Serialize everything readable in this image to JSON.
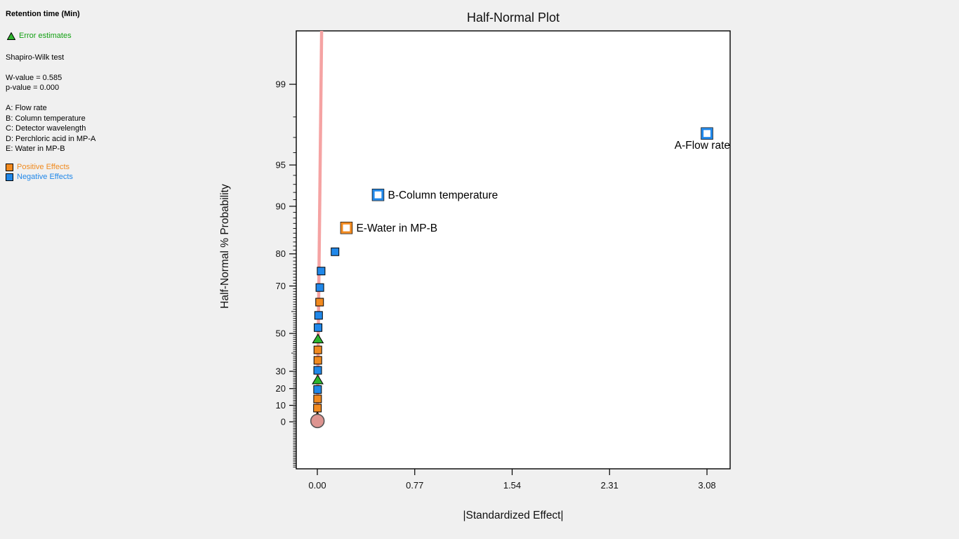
{
  "colors": {
    "page_bg": "#f0f0f0",
    "plot_bg": "#ffffff",
    "positive": "#f28a1f",
    "negative": "#2188e9",
    "error": "#2eb42e",
    "center_fill": "#dd9490",
    "center_stroke": "#555555",
    "fit_line": "#f5a3a3",
    "axis": "#000000"
  },
  "sidebar": {
    "response_label": "Retention time (Min)",
    "error_estimates_label": "Error estimates",
    "shapiro_title": "Shapiro-Wilk test",
    "w_value": "W-value = 0.585",
    "p_value": "p-value = 0.000",
    "factors": [
      "A: Flow rate",
      "B: Column temperature",
      "C: Detector wavelength",
      "D: Perchloric acid in MP-A",
      "E: Water in MP-B"
    ],
    "positive_label": "Positive Effects",
    "negative_label": "Negative Effects"
  },
  "chart_data": {
    "type": "scatter",
    "title": "Half-Normal Plot",
    "xlabel": "|Standardized Effect|",
    "ylabel": "Half-Normal % Probability",
    "x_axis": {
      "min": -0.17,
      "max": 3.26,
      "ticks": [
        {
          "label": "0.00",
          "value": 0
        },
        {
          "label": "0.77",
          "value": 0.77
        },
        {
          "label": "1.54",
          "value": 1.54
        },
        {
          "label": "2.31",
          "value": 2.31
        },
        {
          "label": "3.08",
          "value": 3.08
        }
      ]
    },
    "y_axis": {
      "scale": "half-normal-probability",
      "ticks": [
        {
          "label": "0",
          "value": 0
        },
        {
          "label": "10",
          "value": 10
        },
        {
          "label": "20",
          "value": 20
        },
        {
          "label": "30",
          "value": 30
        },
        {
          "label": "50",
          "value": 50
        },
        {
          "label": "70",
          "value": 70
        },
        {
          "label": "80",
          "value": 80
        },
        {
          "label": "90",
          "value": 90
        },
        {
          "label": "95",
          "value": 95
        },
        {
          "label": "99",
          "value": 99
        }
      ]
    },
    "fit_line": {
      "x1": 0.0,
      "p1": 0.0,
      "x2": 0.034,
      "p2": 99.72
    },
    "points": [
      {
        "x": 3.08,
        "p": 97.22,
        "effect": "negative",
        "open": true,
        "label": "A-Flow rate",
        "label_pos": "below-left"
      },
      {
        "x": 0.48,
        "p": 91.67,
        "effect": "negative",
        "open": true,
        "label": "B-Column temperature",
        "label_pos": "right"
      },
      {
        "x": 0.23,
        "p": 86.11,
        "effect": "positive",
        "open": true,
        "label": "E-Water in MP-B",
        "label_pos": "right"
      },
      {
        "x": 0.14,
        "p": 80.56,
        "effect": "negative"
      },
      {
        "x": 0.03,
        "p": 75.0,
        "effect": "negative"
      },
      {
        "x": 0.02,
        "p": 69.44,
        "effect": "negative"
      },
      {
        "x": 0.018,
        "p": 63.89,
        "effect": "positive"
      },
      {
        "x": 0.01,
        "p": 58.33,
        "effect": "negative"
      },
      {
        "x": 0.006,
        "p": 52.78,
        "effect": "negative"
      },
      {
        "x": 0.005,
        "p": 47.22,
        "effect": "error"
      },
      {
        "x": 0.004,
        "p": 41.67,
        "effect": "positive"
      },
      {
        "x": 0.004,
        "p": 36.11,
        "effect": "positive"
      },
      {
        "x": 0.003,
        "p": 30.56,
        "effect": "negative"
      },
      {
        "x": 0.003,
        "p": 25.0,
        "effect": "error"
      },
      {
        "x": 0.002,
        "p": 19.44,
        "effect": "negative"
      },
      {
        "x": 0.002,
        "p": 13.89,
        "effect": "positive"
      },
      {
        "x": 0.001,
        "p": 8.33,
        "effect": "positive"
      },
      {
        "x": 0.001,
        "p": 2.78,
        "effect": "error"
      },
      {
        "x": 0.001,
        "p": 0.5,
        "effect": "center"
      }
    ]
  }
}
